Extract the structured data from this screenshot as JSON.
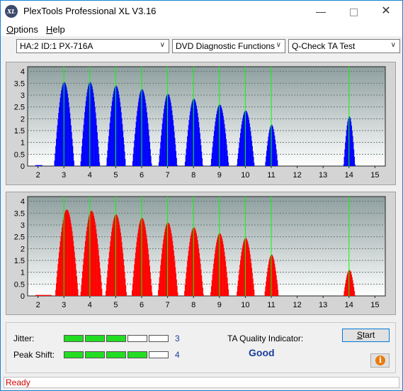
{
  "window": {
    "title": "PlexTools Professional XL V3.16",
    "logo_text": "XL"
  },
  "menu": {
    "items": [
      {
        "label": "Options",
        "key": "O"
      },
      {
        "label": "Help",
        "key": "H"
      }
    ]
  },
  "toolbar": {
    "drive_select": "HA:2 ID:1  PX-716A",
    "function_select": "DVD Diagnostic Functions",
    "test_select": "Q-Check TA Test"
  },
  "chart_data": [
    {
      "type": "bar",
      "color": "#0000ff",
      "x": {
        "ticks": [
          2,
          3,
          4,
          5,
          6,
          7,
          8,
          9,
          10,
          11,
          12,
          13,
          14,
          15
        ],
        "range": [
          1.6,
          15.4
        ]
      },
      "y": {
        "ticks": [
          "0",
          "0.5",
          "1",
          "1.5",
          "2",
          "2.5",
          "3",
          "3.5",
          "4"
        ],
        "range": [
          0,
          4.2
        ]
      },
      "peaks": [
        {
          "center": 3.0,
          "height": 3.55,
          "width": 0.78
        },
        {
          "center": 4.0,
          "height": 3.55,
          "width": 0.75
        },
        {
          "center": 5.0,
          "height": 3.4,
          "width": 0.75
        },
        {
          "center": 6.0,
          "height": 3.25,
          "width": 0.75
        },
        {
          "center": 7.0,
          "height": 3.05,
          "width": 0.72
        },
        {
          "center": 8.0,
          "height": 2.85,
          "width": 0.7
        },
        {
          "center": 9.0,
          "height": 2.6,
          "width": 0.7
        },
        {
          "center": 10.0,
          "height": 2.35,
          "width": 0.68
        },
        {
          "center": 11.0,
          "height": 1.75,
          "width": 0.5
        },
        {
          "center": 14.0,
          "height": 2.1,
          "width": 0.45
        }
      ],
      "markers": [
        3,
        4,
        5,
        6,
        7,
        8,
        9,
        10,
        11,
        14
      ],
      "noise_end": 2.15
    },
    {
      "type": "bar",
      "color": "#ff0000",
      "x": {
        "ticks": [
          2,
          3,
          4,
          5,
          6,
          7,
          8,
          9,
          10,
          11,
          12,
          13,
          14,
          15
        ],
        "range": [
          1.6,
          15.4
        ]
      },
      "y": {
        "ticks": [
          "0",
          "0.5",
          "1",
          "1.5",
          "2",
          "2.5",
          "3",
          "3.5",
          "4"
        ],
        "range": [
          0,
          4.2
        ]
      },
      "peaks": [
        {
          "center": 3.1,
          "height": 3.65,
          "width": 0.9
        },
        {
          "center": 4.05,
          "height": 3.6,
          "width": 0.85
        },
        {
          "center": 5.0,
          "height": 3.45,
          "width": 0.82
        },
        {
          "center": 6.0,
          "height": 3.3,
          "width": 0.8
        },
        {
          "center": 7.0,
          "height": 3.1,
          "width": 0.78
        },
        {
          "center": 8.0,
          "height": 2.9,
          "width": 0.75
        },
        {
          "center": 9.0,
          "height": 2.65,
          "width": 0.72
        },
        {
          "center": 10.0,
          "height": 2.45,
          "width": 0.7
        },
        {
          "center": 11.0,
          "height": 1.75,
          "width": 0.55
        },
        {
          "center": 14.0,
          "height": 1.1,
          "width": 0.45
        }
      ],
      "markers": [
        3,
        4,
        5,
        6,
        7,
        8,
        9,
        10,
        11,
        14
      ],
      "noise_end": 2.5
    }
  ],
  "stats": {
    "jitter_label": "Jitter:",
    "jitter_value": "3",
    "jitter_level": 3,
    "peak_label": "Peak Shift:",
    "peak_value": "4",
    "peak_level": 4,
    "segments": 5,
    "on_color": "#22dd22",
    "ta_label": "TA Quality Indicator:",
    "ta_value": "Good",
    "start_label": "Start",
    "start_key": "S",
    "info_icon": "i"
  },
  "status": {
    "text": "Ready"
  }
}
